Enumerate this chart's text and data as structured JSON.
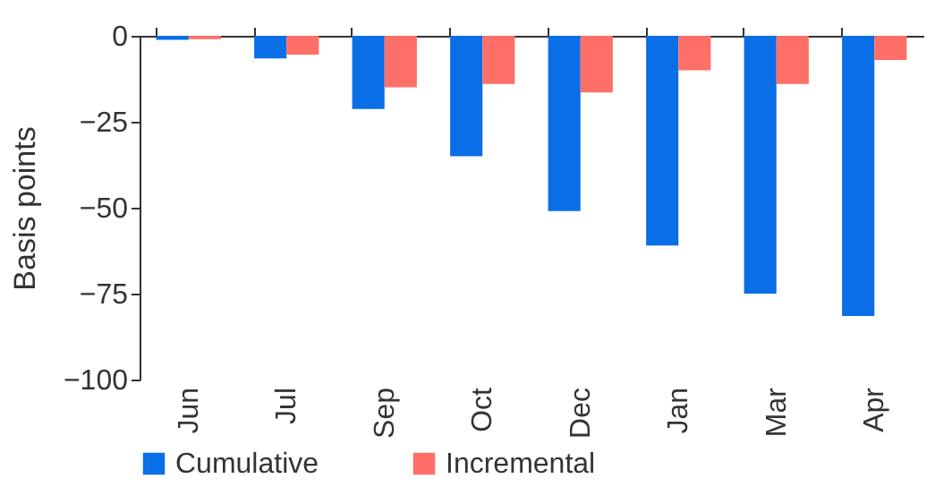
{
  "chart_data": {
    "type": "bar",
    "ylabel": "Basis points",
    "categories": [
      "Jun",
      "Jul",
      "Sep",
      "Oct",
      "Dec",
      "Jan",
      "Mar",
      "Apr"
    ],
    "series": [
      {
        "name": "Cumulative",
        "color": "#0a6ee6",
        "values": [
          -1.2,
          -6.6,
          -21.3,
          -35,
          -51,
          -61,
          -75,
          -81.5
        ]
      },
      {
        "name": "Incremental",
        "color": "#fd6f67",
        "values": [
          -1,
          -5.5,
          -15,
          -14,
          -16.5,
          -10,
          -14,
          -7
        ]
      }
    ],
    "ylim": [
      -100,
      0
    ],
    "yticks": [
      -100,
      -75,
      -50,
      -25,
      0
    ],
    "grid": false,
    "legend": "bottom"
  }
}
